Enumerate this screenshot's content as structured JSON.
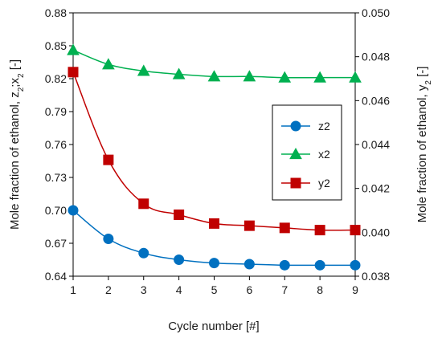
{
  "chart_data": {
    "type": "line",
    "xlabel": "Cycle number [#]",
    "ylabel_left": "Mole fraction of ethanol, z2;x2 [-]",
    "ylabel_right": "Mole fraction of ethanol, y2 [-]",
    "x": [
      1,
      2,
      3,
      4,
      5,
      6,
      7,
      8,
      9
    ],
    "xlim": [
      1,
      9
    ],
    "ylim_left": [
      0.64,
      0.88
    ],
    "ylim_right": [
      0.038,
      0.05
    ],
    "yticks_left": [
      "0.64",
      "0.67",
      "0.70",
      "0.73",
      "0.76",
      "0.79",
      "0.82",
      "0.85",
      "0.88"
    ],
    "yticks_right": [
      "0.038",
      "0.040",
      "0.042",
      "0.044",
      "0.046",
      "0.048",
      "0.050"
    ],
    "grid": false,
    "legend_position": "right-middle",
    "series": [
      {
        "name": "z2",
        "axis": "left",
        "marker": "circle",
        "color": "#0070C0",
        "values": [
          0.7,
          0.674,
          0.661,
          0.655,
          0.652,
          0.651,
          0.65,
          0.65,
          0.65
        ]
      },
      {
        "name": "x2",
        "axis": "left",
        "marker": "triangle",
        "color": "#00B050",
        "values": [
          0.846,
          0.833,
          0.827,
          0.824,
          0.822,
          0.822,
          0.821,
          0.821,
          0.821
        ]
      },
      {
        "name": "y2",
        "axis": "right",
        "marker": "square",
        "color": "#C00000",
        "values": [
          0.0473,
          0.0433,
          0.0413,
          0.0408,
          0.0404,
          0.0403,
          0.0402,
          0.0401,
          0.0401
        ]
      }
    ]
  }
}
